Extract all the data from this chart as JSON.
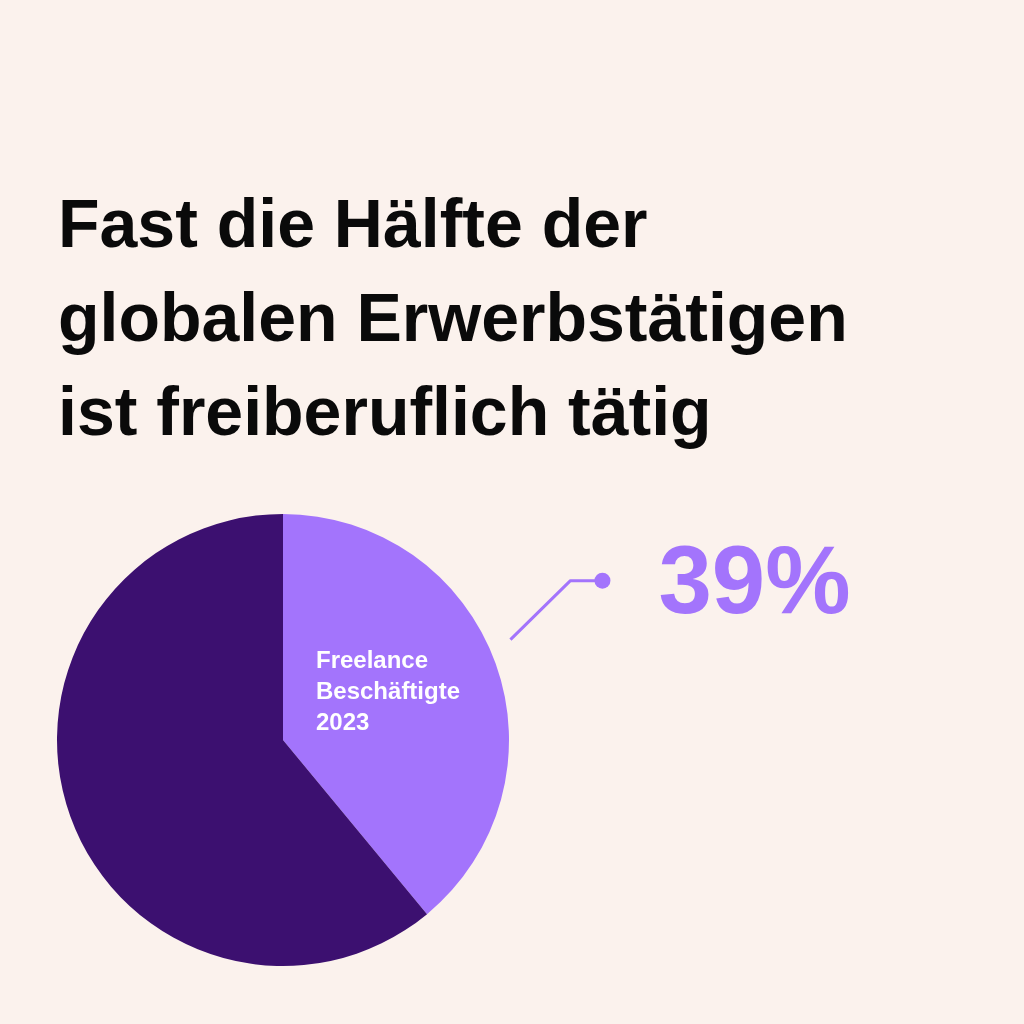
{
  "chart_data": {
    "type": "pie",
    "title": "Fast die Hälfte der globalen Erwerbstätigen ist freiberuflich tätig",
    "categories": [
      "Freelance Beschäftigte 2023",
      null
    ],
    "values": [
      39,
      61
    ],
    "colors": [
      "#a374fc",
      "#3c1070"
    ],
    "value_labels": [
      "39%",
      null
    ],
    "legend": false
  }
}
